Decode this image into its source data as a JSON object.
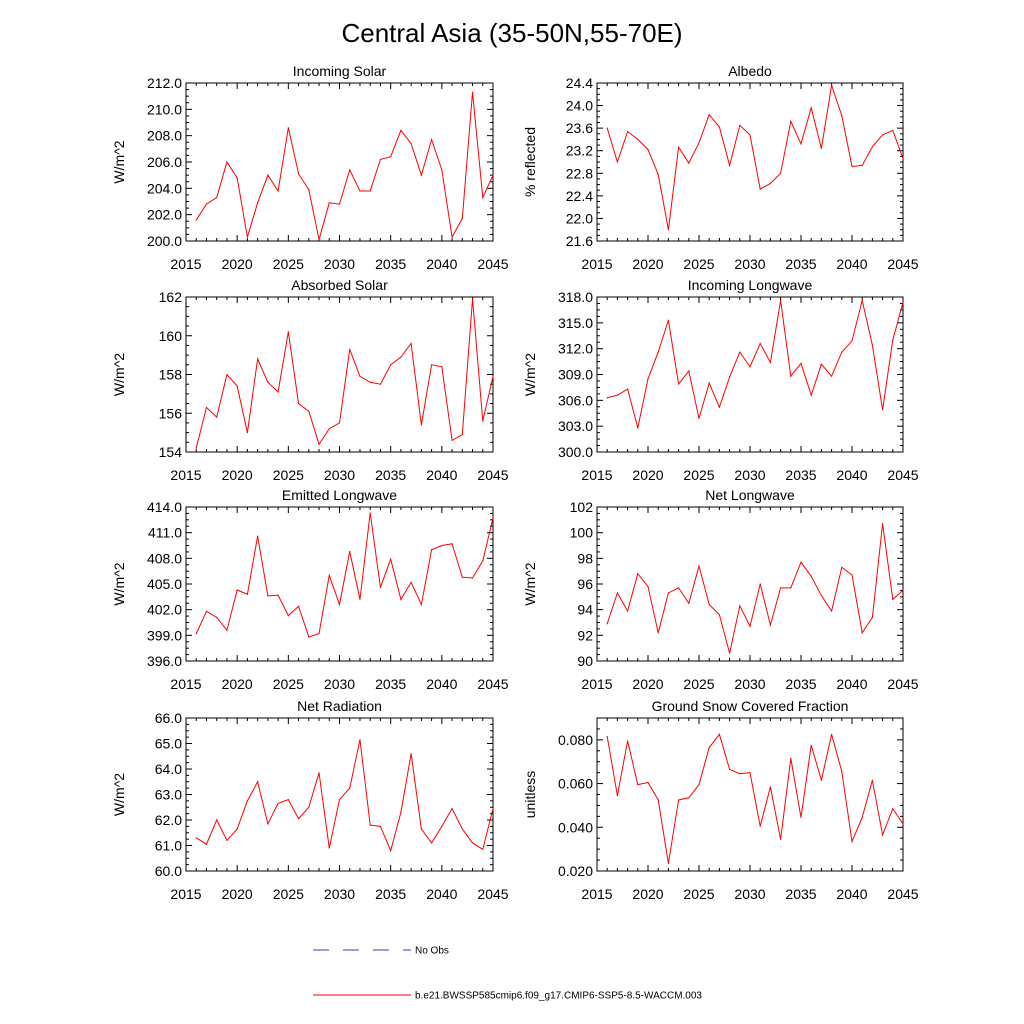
{
  "page_title": "Central Asia (35-50N,55-70E)",
  "legend": {
    "obs_label": "No Obs",
    "model_label": "b.e21.BWSSP585cmip6.f09_g17.CMIP6-SSP5-8.5-WACCM.003",
    "obs_color": "#3a3acc",
    "model_color": "#ff0000"
  },
  "chart_data": [
    {
      "type": "line",
      "title": "Incoming Solar",
      "xlabel": "",
      "ylabel": "W/m^2",
      "xlim": [
        2015,
        2045
      ],
      "ylim": [
        200.0,
        212.0
      ],
      "xticks": [
        2015,
        2020,
        2025,
        2030,
        2035,
        2040,
        2045
      ],
      "yticks": [
        "200.0",
        "202.0",
        "204.0",
        "206.0",
        "208.0",
        "210.0",
        "212.0"
      ],
      "x": [
        2016,
        2017,
        2018,
        2019,
        2020,
        2021,
        2022,
        2023,
        2024,
        2025,
        2026,
        2027,
        2028,
        2029,
        2030,
        2031,
        2032,
        2033,
        2034,
        2035,
        2036,
        2037,
        2038,
        2039,
        2040,
        2041,
        2042,
        2043,
        2044,
        2045
      ],
      "series": [
        {
          "name": "b.e21.BWSSP585cmip6.f09_g17.CMIP6-SSP5-8.5-WACCM.003",
          "values": [
            201.6,
            202.8,
            203.3,
            206.0,
            204.8,
            200.3,
            202.9,
            205.0,
            203.8,
            208.6,
            205.1,
            203.9,
            200.1,
            202.9,
            202.8,
            205.4,
            203.8,
            203.8,
            206.2,
            206.4,
            208.4,
            207.4,
            205.0,
            207.7,
            205.4,
            200.3,
            201.7,
            211.3,
            203.3,
            205.0
          ]
        }
      ]
    },
    {
      "type": "line",
      "title": "Albedo",
      "xlabel": "",
      "ylabel": "% reflected",
      "xlim": [
        2015,
        2045
      ],
      "ylim": [
        21.6,
        24.4
      ],
      "xticks": [
        2015,
        2020,
        2025,
        2030,
        2035,
        2040,
        2045
      ],
      "yticks": [
        "21.6",
        "22.0",
        "22.4",
        "22.8",
        "23.2",
        "23.6",
        "24.0",
        "24.4"
      ],
      "x": [
        2016,
        2017,
        2018,
        2019,
        2020,
        2021,
        2022,
        2023,
        2024,
        2025,
        2026,
        2027,
        2028,
        2029,
        2030,
        2031,
        2032,
        2033,
        2034,
        2035,
        2036,
        2037,
        2038,
        2039,
        2040,
        2041,
        2042,
        2043,
        2044,
        2045
      ],
      "series": [
        {
          "name": "b.e21.BWSSP585cmip6.f09_g17.CMIP6-SSP5-8.5-WACCM.003",
          "values": [
            23.6,
            23.0,
            23.54,
            23.4,
            23.22,
            22.78,
            21.8,
            23.26,
            22.98,
            23.34,
            23.84,
            23.62,
            22.94,
            23.65,
            23.48,
            22.52,
            22.62,
            22.8,
            23.72,
            23.32,
            23.96,
            23.24,
            24.36,
            23.82,
            22.92,
            22.94,
            23.27,
            23.48,
            23.56,
            23.06
          ]
        }
      ]
    },
    {
      "type": "line",
      "title": "Absorbed Solar",
      "xlabel": "",
      "ylabel": "W/m^2",
      "xlim": [
        2015,
        2045
      ],
      "ylim": [
        154,
        162
      ],
      "xticks": [
        2015,
        2020,
        2025,
        2030,
        2035,
        2040,
        2045
      ],
      "yticks": [
        "154",
        "156",
        "158",
        "160",
        "162"
      ],
      "x": [
        2016,
        2017,
        2018,
        2019,
        2020,
        2021,
        2022,
        2023,
        2024,
        2025,
        2026,
        2027,
        2028,
        2029,
        2030,
        2031,
        2032,
        2033,
        2034,
        2035,
        2036,
        2037,
        2038,
        2039,
        2040,
        2041,
        2042,
        2043,
        2044,
        2045
      ],
      "series": [
        {
          "name": "b.e21.BWSSP585cmip6.f09_g17.CMIP6-SSP5-8.5-WACCM.003",
          "values": [
            154.2,
            156.3,
            155.8,
            158.0,
            157.4,
            155.0,
            158.8,
            157.6,
            157.1,
            160.2,
            156.5,
            156.1,
            154.4,
            155.2,
            155.5,
            159.3,
            157.9,
            157.6,
            157.5,
            158.5,
            158.9,
            159.6,
            155.4,
            158.5,
            158.4,
            154.6,
            154.9,
            161.9,
            155.6,
            157.9
          ]
        }
      ]
    },
    {
      "type": "line",
      "title": "Incoming Longwave",
      "xlabel": "",
      "ylabel": "W/m^2",
      "xlim": [
        2015,
        2045
      ],
      "ylim": [
        300.0,
        318.0
      ],
      "xticks": [
        2015,
        2020,
        2025,
        2030,
        2035,
        2040,
        2045
      ],
      "yticks": [
        "300.0",
        "303.0",
        "306.0",
        "309.0",
        "312.0",
        "315.0",
        "318.0"
      ],
      "x": [
        2016,
        2017,
        2018,
        2019,
        2020,
        2021,
        2022,
        2023,
        2024,
        2025,
        2026,
        2027,
        2028,
        2029,
        2030,
        2031,
        2032,
        2033,
        2034,
        2035,
        2036,
        2037,
        2038,
        2039,
        2040,
        2041,
        2042,
        2043,
        2044,
        2045
      ],
      "series": [
        {
          "name": "b.e21.BWSSP585cmip6.f09_g17.CMIP6-SSP5-8.5-WACCM.003",
          "values": [
            306.3,
            306.6,
            307.3,
            302.8,
            308.5,
            311.6,
            315.3,
            307.9,
            309.4,
            303.9,
            308.0,
            305.2,
            308.7,
            311.6,
            309.9,
            312.6,
            310.4,
            317.6,
            308.8,
            310.3,
            306.6,
            310.2,
            308.8,
            311.6,
            312.9,
            317.6,
            312.4,
            304.9,
            313.0,
            317.4
          ]
        }
      ]
    },
    {
      "type": "line",
      "title": "Emitted Longwave",
      "xlabel": "",
      "ylabel": "W/m^2",
      "xlim": [
        2015,
        2045
      ],
      "ylim": [
        396.0,
        414.0
      ],
      "xticks": [
        2015,
        2020,
        2025,
        2030,
        2035,
        2040,
        2045
      ],
      "yticks": [
        "396.0",
        "399.0",
        "402.0",
        "405.0",
        "408.0",
        "411.0",
        "414.0"
      ],
      "x": [
        2016,
        2017,
        2018,
        2019,
        2020,
        2021,
        2022,
        2023,
        2024,
        2025,
        2026,
        2027,
        2028,
        2029,
        2030,
        2031,
        2032,
        2033,
        2034,
        2035,
        2036,
        2037,
        2038,
        2039,
        2040,
        2041,
        2042,
        2043,
        2044,
        2045
      ],
      "series": [
        {
          "name": "b.e21.BWSSP585cmip6.f09_g17.CMIP6-SSP5-8.5-WACCM.003",
          "values": [
            399.2,
            401.8,
            401.1,
            399.6,
            404.3,
            403.8,
            410.6,
            403.6,
            403.7,
            401.3,
            402.4,
            398.8,
            399.2,
            406.0,
            402.6,
            408.8,
            403.2,
            413.3,
            404.6,
            407.9,
            403.2,
            405.2,
            402.6,
            409.0,
            409.5,
            409.7,
            405.8,
            405.7,
            407.7,
            412.7
          ]
        }
      ]
    },
    {
      "type": "line",
      "title": "Net Longwave",
      "xlabel": "",
      "ylabel": "W/m^2",
      "xlim": [
        2015,
        2045
      ],
      "ylim": [
        90,
        102
      ],
      "xticks": [
        2015,
        2020,
        2025,
        2030,
        2035,
        2040,
        2045
      ],
      "yticks": [
        "90",
        "92",
        "94",
        "96",
        "98",
        "100",
        "102"
      ],
      "x": [
        2016,
        2017,
        2018,
        2019,
        2020,
        2021,
        2022,
        2023,
        2024,
        2025,
        2026,
        2027,
        2028,
        2029,
        2030,
        2031,
        2032,
        2033,
        2034,
        2035,
        2036,
        2037,
        2038,
        2039,
        2040,
        2041,
        2042,
        2043,
        2044,
        2045
      ],
      "series": [
        {
          "name": "b.e21.BWSSP585cmip6.f09_g17.CMIP6-SSP5-8.5-WACCM.003",
          "values": [
            92.9,
            95.3,
            93.9,
            96.8,
            95.8,
            92.2,
            95.3,
            95.7,
            94.5,
            97.4,
            94.4,
            93.6,
            90.6,
            94.3,
            92.7,
            96.0,
            92.8,
            95.7,
            95.7,
            97.7,
            96.6,
            95.1,
            93.9,
            97.3,
            96.7,
            92.2,
            93.4,
            100.7,
            94.8,
            95.5
          ]
        }
      ]
    },
    {
      "type": "line",
      "title": "Net Radiation",
      "xlabel": "",
      "ylabel": "W/m^2",
      "xlim": [
        2015,
        2045
      ],
      "ylim": [
        60.0,
        66.0
      ],
      "xticks": [
        2015,
        2020,
        2025,
        2030,
        2035,
        2040,
        2045
      ],
      "yticks": [
        "60.0",
        "61.0",
        "62.0",
        "63.0",
        "64.0",
        "65.0",
        "66.0"
      ],
      "x": [
        2016,
        2017,
        2018,
        2019,
        2020,
        2021,
        2022,
        2023,
        2024,
        2025,
        2026,
        2027,
        2028,
        2029,
        2030,
        2031,
        2032,
        2033,
        2034,
        2035,
        2036,
        2037,
        2038,
        2039,
        2040,
        2041,
        2042,
        2043,
        2044,
        2045
      ],
      "series": [
        {
          "name": "b.e21.BWSSP585cmip6.f09_g17.CMIP6-SSP5-8.5-WACCM.003",
          "values": [
            61.3,
            61.05,
            62.0,
            61.2,
            61.65,
            62.75,
            63.5,
            61.85,
            62.65,
            62.8,
            62.05,
            62.5,
            63.85,
            60.9,
            62.8,
            63.25,
            65.15,
            61.8,
            61.75,
            60.8,
            62.3,
            64.6,
            61.65,
            61.1,
            61.75,
            62.45,
            61.65,
            61.1,
            60.85,
            62.45
          ]
        }
      ]
    },
    {
      "type": "line",
      "title": "Ground Snow Covered Fraction",
      "xlabel": "",
      "ylabel": "unitless",
      "xlim": [
        2015,
        2045
      ],
      "ylim": [
        0.02,
        0.09
      ],
      "xticks": [
        2015,
        2020,
        2025,
        2030,
        2035,
        2040,
        2045
      ],
      "yticks": [
        "0.020",
        "0.040",
        "0.060",
        "0.080"
      ],
      "x": [
        2016,
        2017,
        2018,
        2019,
        2020,
        2021,
        2022,
        2023,
        2024,
        2025,
        2026,
        2027,
        2028,
        2029,
        2030,
        2031,
        2032,
        2033,
        2034,
        2035,
        2036,
        2037,
        2038,
        2039,
        2040,
        2041,
        2042,
        2043,
        2044,
        2045
      ],
      "series": [
        {
          "name": "b.e21.BWSSP585cmip6.f09_g17.CMIP6-SSP5-8.5-WACCM.003",
          "values": [
            0.0815,
            0.0545,
            0.0795,
            0.0595,
            0.0605,
            0.0525,
            0.0235,
            0.0525,
            0.0535,
            0.0595,
            0.0765,
            0.0825,
            0.0665,
            0.0645,
            0.065,
            0.0405,
            0.0585,
            0.0345,
            0.0715,
            0.0445,
            0.0775,
            0.0615,
            0.0825,
            0.0655,
            0.0335,
            0.0445,
            0.0615,
            0.0365,
            0.0485,
            0.0415
          ]
        }
      ]
    }
  ]
}
